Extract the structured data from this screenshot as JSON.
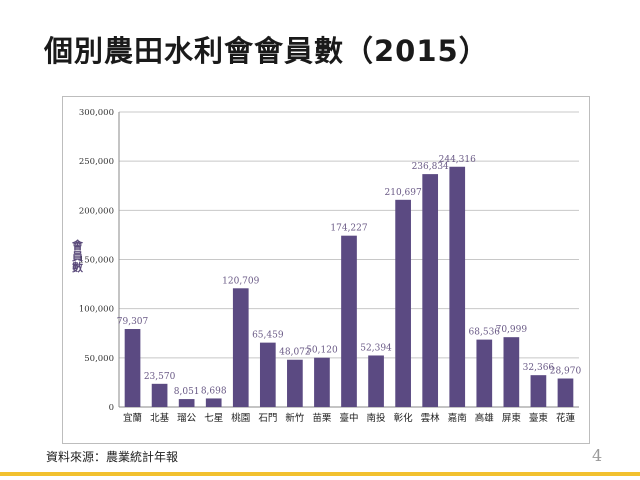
{
  "slide": {
    "title": "個別農田水利會會員數（2015）",
    "source": "資料來源：農業統計年報",
    "page_number": "4"
  },
  "colors": {
    "bar": "#5b4a82",
    "grid": "#c8c8c8",
    "footer_rule": "#f2c12e"
  },
  "chart_data": {
    "type": "bar",
    "title": "",
    "xlabel": "",
    "ylabel": "會員數",
    "ylim": [
      0,
      300000
    ],
    "yticks": [
      0,
      50000,
      100000,
      150000,
      200000,
      250000,
      300000
    ],
    "ytick_labels": [
      "0",
      "50,000",
      "100,000",
      "150,000",
      "200,000",
      "250,000",
      "300,000"
    ],
    "grid": true,
    "legend": "none",
    "categories": [
      "宜蘭",
      "北基",
      "瑠公",
      "七星",
      "桃園",
      "石門",
      "新竹",
      "苗栗",
      "臺中",
      "南投",
      "彰化",
      "雲林",
      "嘉南",
      "高雄",
      "屏東",
      "臺東",
      "花蓮"
    ],
    "values": [
      79307,
      23570,
      8051,
      8698,
      120709,
      65459,
      48072,
      50120,
      174227,
      52394,
      210697,
      236834,
      244316,
      68536,
      70999,
      32366,
      28970
    ],
    "value_labels": [
      "79,307",
      "23,570",
      "8,051",
      "8,698",
      "120,709",
      "65,459",
      "48,072",
      "50,120",
      "174,227",
      "52,394",
      "210,697",
      "236,834",
      "244,316",
      "68,536",
      "70,999",
      "32,366",
      "28,970"
    ]
  }
}
